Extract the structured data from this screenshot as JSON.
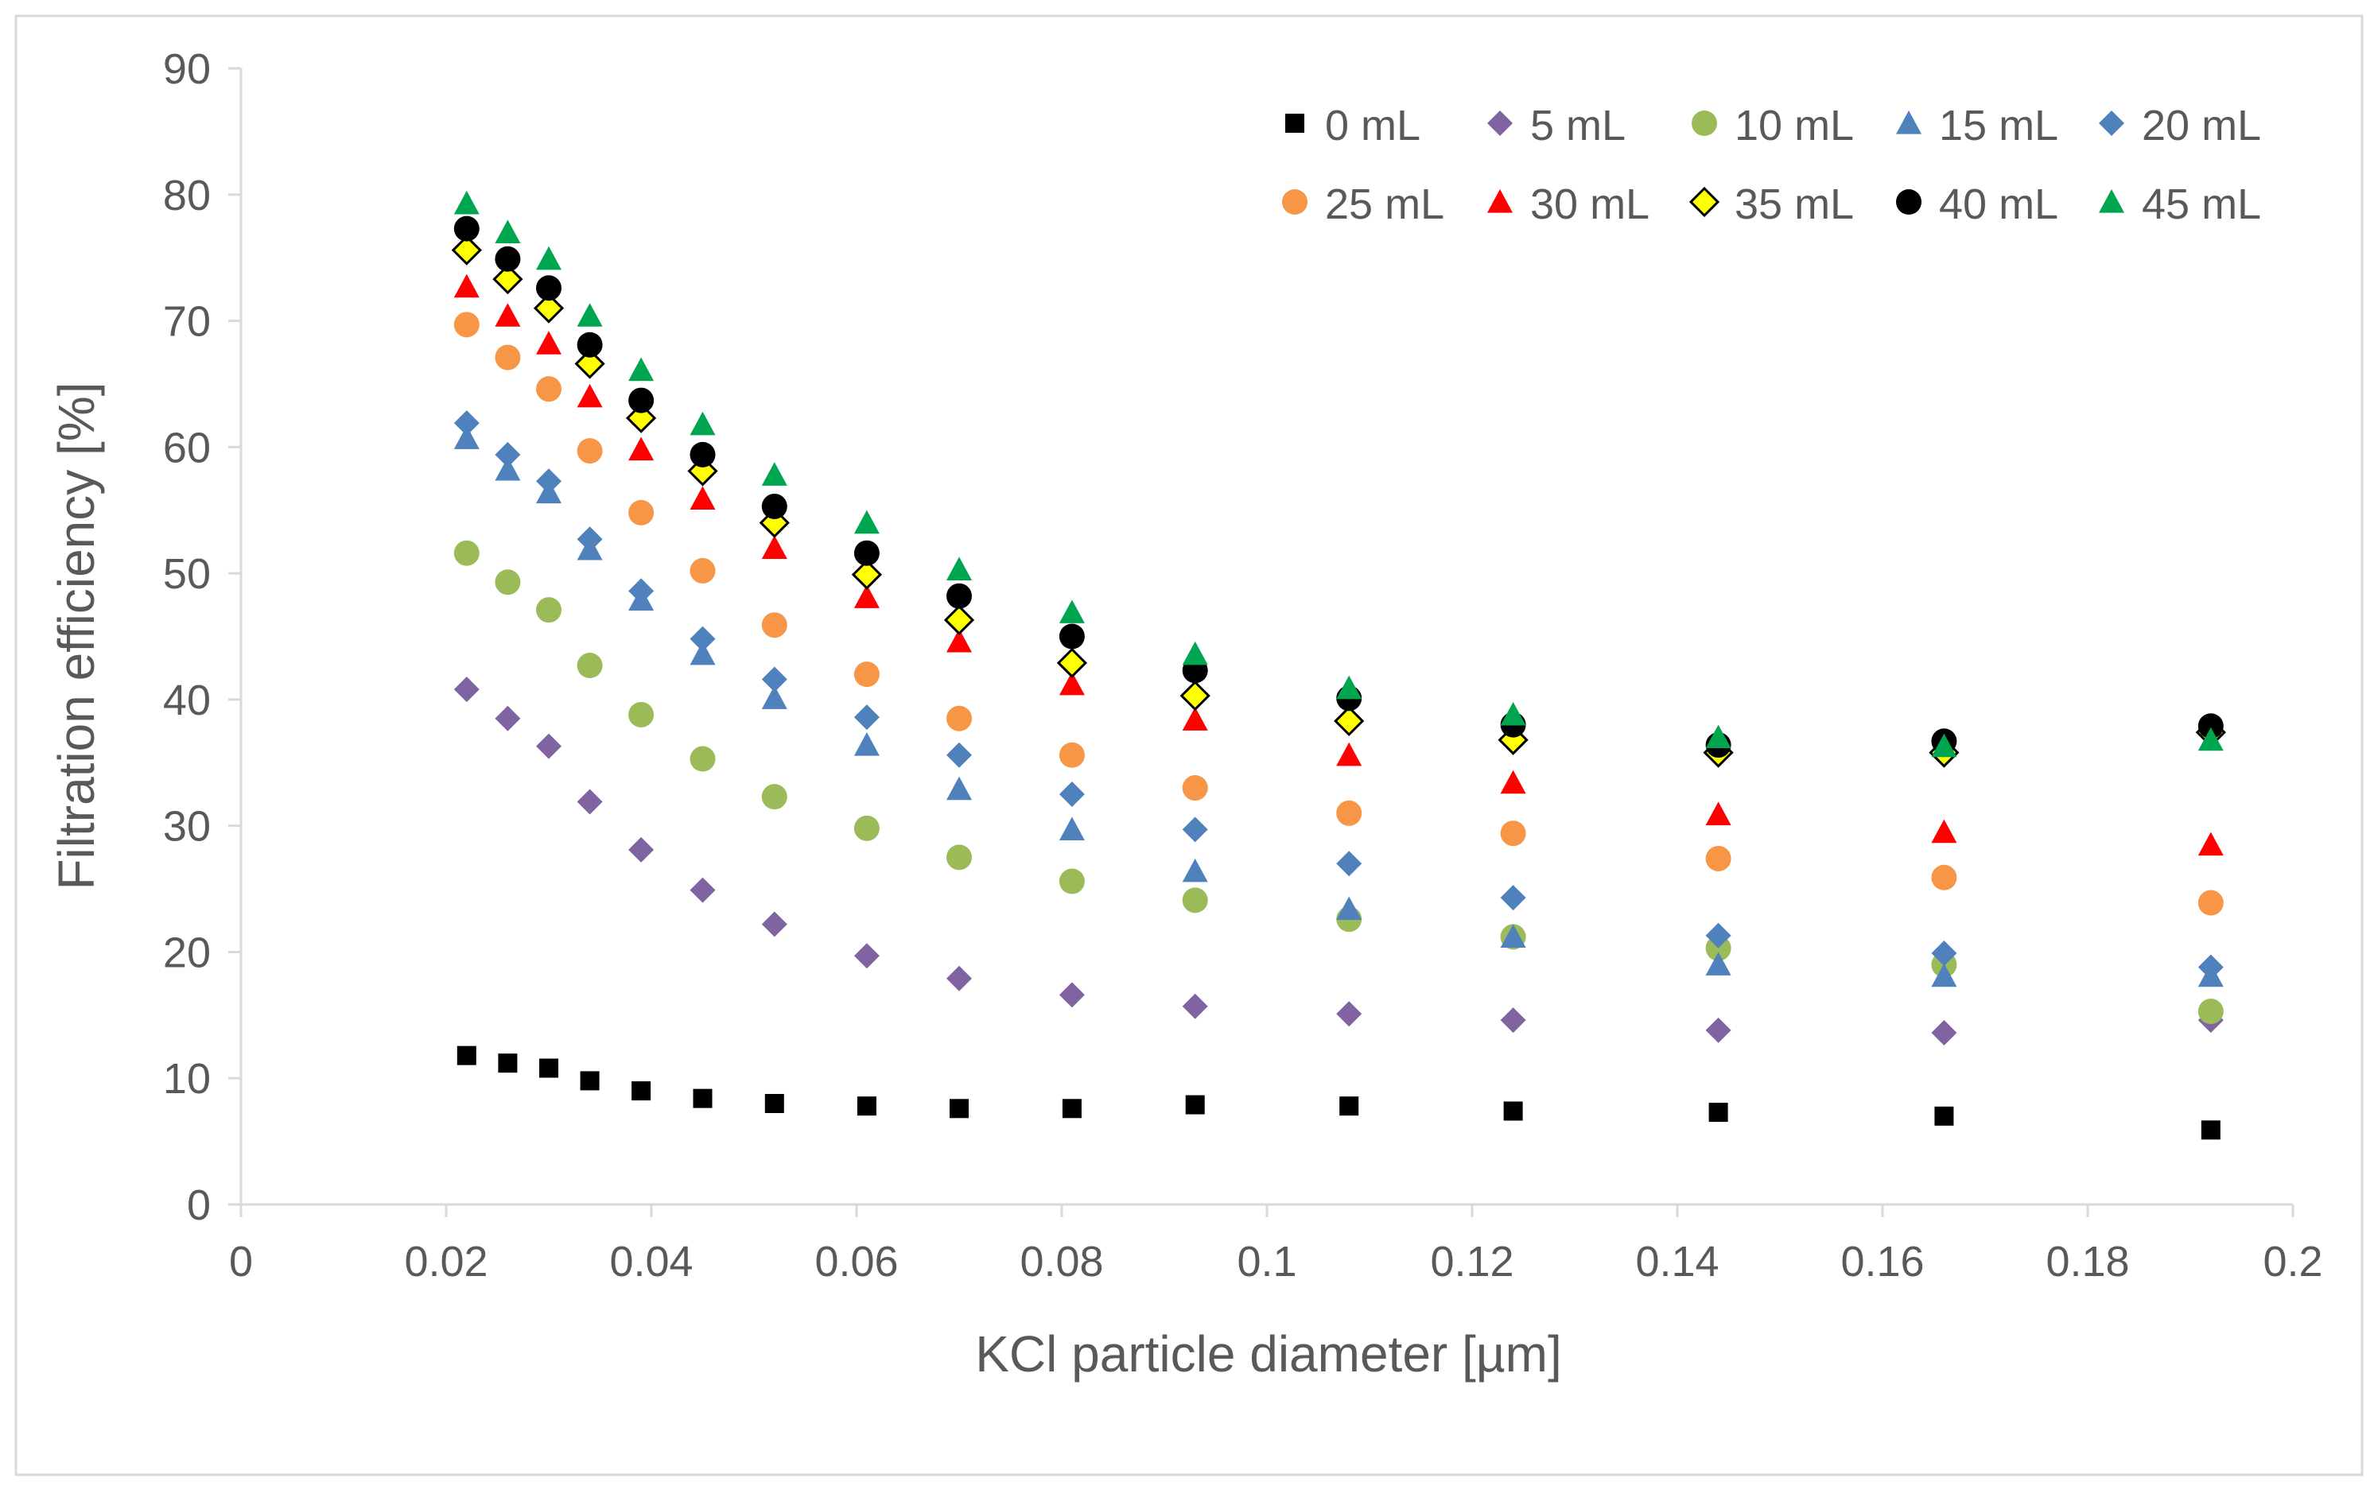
{
  "chart_data": {
    "type": "scatter",
    "xlabel": "KCl particle diameter [µm]",
    "ylabel": "Filtration efficiency [%]",
    "xlim": [
      0,
      0.2
    ],
    "ylim": [
      0,
      90
    ],
    "xticks": [
      "0",
      "0.02",
      "0.04",
      "0.06",
      "0.08",
      "0.1",
      "0.12",
      "0.14",
      "0.16",
      "0.18",
      "0.2"
    ],
    "yticks": [
      "0",
      "10",
      "20",
      "30",
      "40",
      "50",
      "60",
      "70",
      "80",
      "90"
    ],
    "grid": false,
    "legend_position": "top-right",
    "x": [
      0.022,
      0.026,
      0.03,
      0.034,
      0.039,
      0.045,
      0.052,
      0.061,
      0.07,
      0.081,
      0.093,
      0.108,
      0.124,
      0.144,
      0.166,
      0.192
    ],
    "series": [
      {
        "name": "0 mL",
        "marker": "square",
        "color": "#000000",
        "values": [
          11.8,
          11.2,
          10.8,
          9.8,
          9.0,
          8.4,
          8.0,
          7.8,
          7.6,
          7.6,
          7.9,
          7.8,
          7.4,
          7.3,
          7.0,
          5.9
        ]
      },
      {
        "name": "5 mL",
        "marker": "diamond",
        "color": "#8064A2",
        "values": [
          40.8,
          38.5,
          36.3,
          31.9,
          28.1,
          24.9,
          22.2,
          19.7,
          17.9,
          16.6,
          15.7,
          15.1,
          14.6,
          13.8,
          13.6,
          14.6
        ]
      },
      {
        "name": "10 mL",
        "marker": "circle",
        "color": "#9BBB59",
        "values": [
          51.6,
          49.3,
          47.1,
          42.7,
          38.8,
          35.3,
          32.3,
          29.8,
          27.5,
          25.6,
          24.1,
          22.6,
          21.2,
          20.3,
          19.0,
          15.3
        ]
      },
      {
        "name": "15 mL",
        "marker": "triangle",
        "color": "#4F81BD",
        "values": [
          60.7,
          58.2,
          56.4,
          51.9,
          47.9,
          43.6,
          40.1,
          36.4,
          32.9,
          29.7,
          26.4,
          23.4,
          21.2,
          19.0,
          18.1,
          18.1
        ]
      },
      {
        "name": "20 mL",
        "marker": "diamond",
        "color": "#4F81BD",
        "values": [
          61.9,
          59.4,
          57.3,
          52.7,
          48.6,
          44.8,
          41.6,
          38.6,
          35.6,
          32.5,
          29.7,
          27.0,
          24.3,
          21.3,
          19.9,
          18.8
        ]
      },
      {
        "name": "25 mL",
        "marker": "circle",
        "color": "#F79646",
        "values": [
          69.7,
          67.1,
          64.6,
          59.7,
          54.8,
          50.2,
          45.9,
          42.0,
          38.5,
          35.6,
          33.0,
          31.0,
          29.4,
          27.4,
          25.9,
          23.9
        ]
      },
      {
        "name": "30 mL",
        "marker": "triangle",
        "color": "#FF0000",
        "values": [
          72.7,
          70.4,
          68.2,
          64.0,
          59.8,
          55.9,
          52.0,
          48.1,
          44.6,
          41.2,
          38.4,
          35.6,
          33.4,
          30.9,
          29.5,
          28.5
        ]
      },
      {
        "name": "35 mL",
        "marker": "diamond-outline",
        "color": "#FFFF00",
        "values": [
          75.6,
          73.3,
          71.0,
          66.6,
          62.3,
          58.1,
          54.0,
          49.9,
          46.3,
          42.9,
          40.3,
          38.3,
          36.8,
          35.8,
          35.8,
          37.4
        ]
      },
      {
        "name": "40 mL",
        "marker": "circle",
        "color": "#000000",
        "values": [
          77.3,
          74.9,
          72.6,
          68.1,
          63.7,
          59.4,
          55.3,
          51.6,
          48.2,
          45.0,
          42.3,
          40.1,
          38.0,
          36.4,
          36.7,
          37.9
        ]
      },
      {
        "name": "45 mL",
        "marker": "triangle",
        "color": "#00A550",
        "values": [
          79.3,
          77.0,
          74.9,
          70.4,
          66.1,
          61.8,
          57.8,
          54.0,
          50.3,
          46.9,
          43.6,
          40.9,
          38.8,
          37.0,
          36.3,
          36.8
        ]
      }
    ]
  }
}
